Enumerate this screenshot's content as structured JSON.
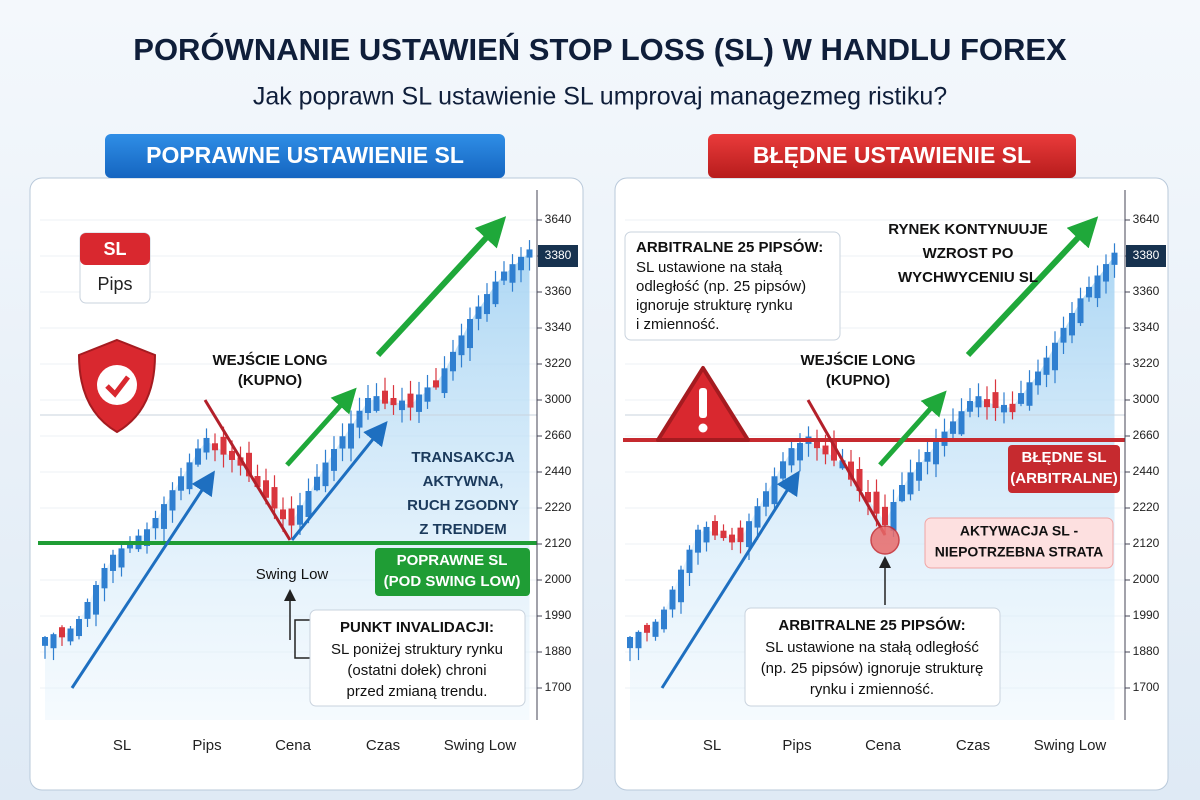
{
  "header": {
    "title": "PORÓWNANIE USTAWIEŃ STOP LOSS (SL) W HANDLU FOREX",
    "subtitle": "Jak poprawn SL ustawienie SL umprovaj managezmeg ristiku?"
  },
  "left_panel": {
    "badge": "POPRAWNE USTAWIENIE SL",
    "icon_card": [
      "SL",
      "Pips"
    ],
    "entry_label": [
      "WEJŚCIE LONG",
      "(KUPNO)"
    ],
    "status_label": [
      "TRANSAKCJA",
      "AKTYWNA,",
      "RUCH ZGODNY",
      "Z TRENDEM"
    ],
    "sl_tag": [
      "POPRAWNE SL",
      "(POD SWING LOW)"
    ],
    "swing_label": "Swing Low",
    "callout": {
      "title": "PUNKT INVALIDACJI:",
      "lines": [
        "SL poniżej struktury rynku",
        "(ostatni dołek) chroni",
        "przed zmianą trendu."
      ]
    },
    "y_axis": [
      "3640",
      "3380",
      "3360",
      "3340",
      "3220",
      "3000",
      "2660",
      "2440",
      "2220",
      "2120",
      "2000",
      "1990",
      "1880",
      "1700"
    ],
    "x_axis": [
      "SL",
      "Pips",
      "Cena",
      "Czas",
      "Swing Low"
    ]
  },
  "right_panel": {
    "badge": "BŁĘDNE USTAWIENIE SL",
    "info_card": {
      "title": "ARBITRALNE 25 PIPSÓW:",
      "lines": [
        "SL ustawione na stałą",
        "odległość (np. 25 pipsów)",
        "ignoruje strukturę rynku",
        "i zmienność."
      ]
    },
    "market_label": [
      "RYNEK KONTYNUUJE",
      "WZROST PO",
      "WYCHWYCENIU SL"
    ],
    "entry_label": [
      "WEJŚCIE LONG",
      "(KUPNO)"
    ],
    "sl_tag": [
      "BŁĘDNE SL",
      "(ARBITRALNE)"
    ],
    "trigger_label": [
      "AKTYWACJA SL -",
      "NIEPOTRZEBNA STRATA"
    ],
    "callout": {
      "title": "ARBITRALNE 25 PIPSÓW:",
      "lines": [
        "SL ustawione na stałą odległość",
        "(np. 25 pipsów) ignoruje strukturę",
        "rynku i zmienność."
      ]
    },
    "y_axis": [
      "3640",
      "3380",
      "3360",
      "3340",
      "3220",
      "3000",
      "2660",
      "2440",
      "2220",
      "2120",
      "2000",
      "1990",
      "1880",
      "1700"
    ],
    "x_axis": [
      "SL",
      "Pips",
      "Cena",
      "Czas",
      "Swing Low"
    ]
  }
}
